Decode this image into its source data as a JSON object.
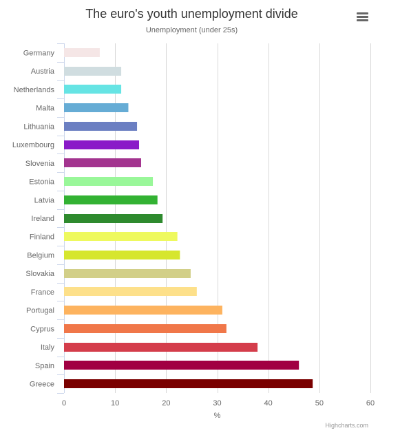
{
  "title": "The euro's youth unemployment divide",
  "subtitle": "Unemployment (under 25s)",
  "menu": {
    "icon": "hamburger-menu-icon"
  },
  "credits": "Highcharts.com",
  "chart_data": {
    "type": "bar",
    "orientation": "horizontal",
    "title": "The euro's youth unemployment divide",
    "subtitle": "Unemployment (under 25s)",
    "ylabel": "%",
    "xlim": [
      0,
      60
    ],
    "ticks": [
      0,
      10,
      20,
      30,
      40,
      50,
      60
    ],
    "grid": true,
    "legend": false,
    "categories": [
      "Germany",
      "Austria",
      "Netherlands",
      "Malta",
      "Lithuania",
      "Luxembourg",
      "Slovenia",
      "Estonia",
      "Latvia",
      "Ireland",
      "Finland",
      "Belgium",
      "Slovakia",
      "France",
      "Portugal",
      "Cyprus",
      "Italy",
      "Spain",
      "Greece"
    ],
    "values": [
      7.0,
      11.2,
      11.2,
      12.6,
      14.3,
      14.7,
      15.1,
      17.4,
      18.3,
      19.3,
      22.2,
      22.7,
      24.8,
      26.0,
      31.0,
      31.8,
      37.9,
      46.0,
      48.7
    ],
    "colors": [
      "#f5e6e6",
      "#d0dde0",
      "#66e4e4",
      "#66acd5",
      "#6b7fc2",
      "#8a1ac8",
      "#a3348f",
      "#99f799",
      "#33b233",
      "#2e8a2e",
      "#eef95e",
      "#d6e62e",
      "#d2cf88",
      "#fde08a",
      "#fdb35f",
      "#f07749",
      "#d43d4b",
      "#a10042",
      "#7a0000"
    ]
  }
}
